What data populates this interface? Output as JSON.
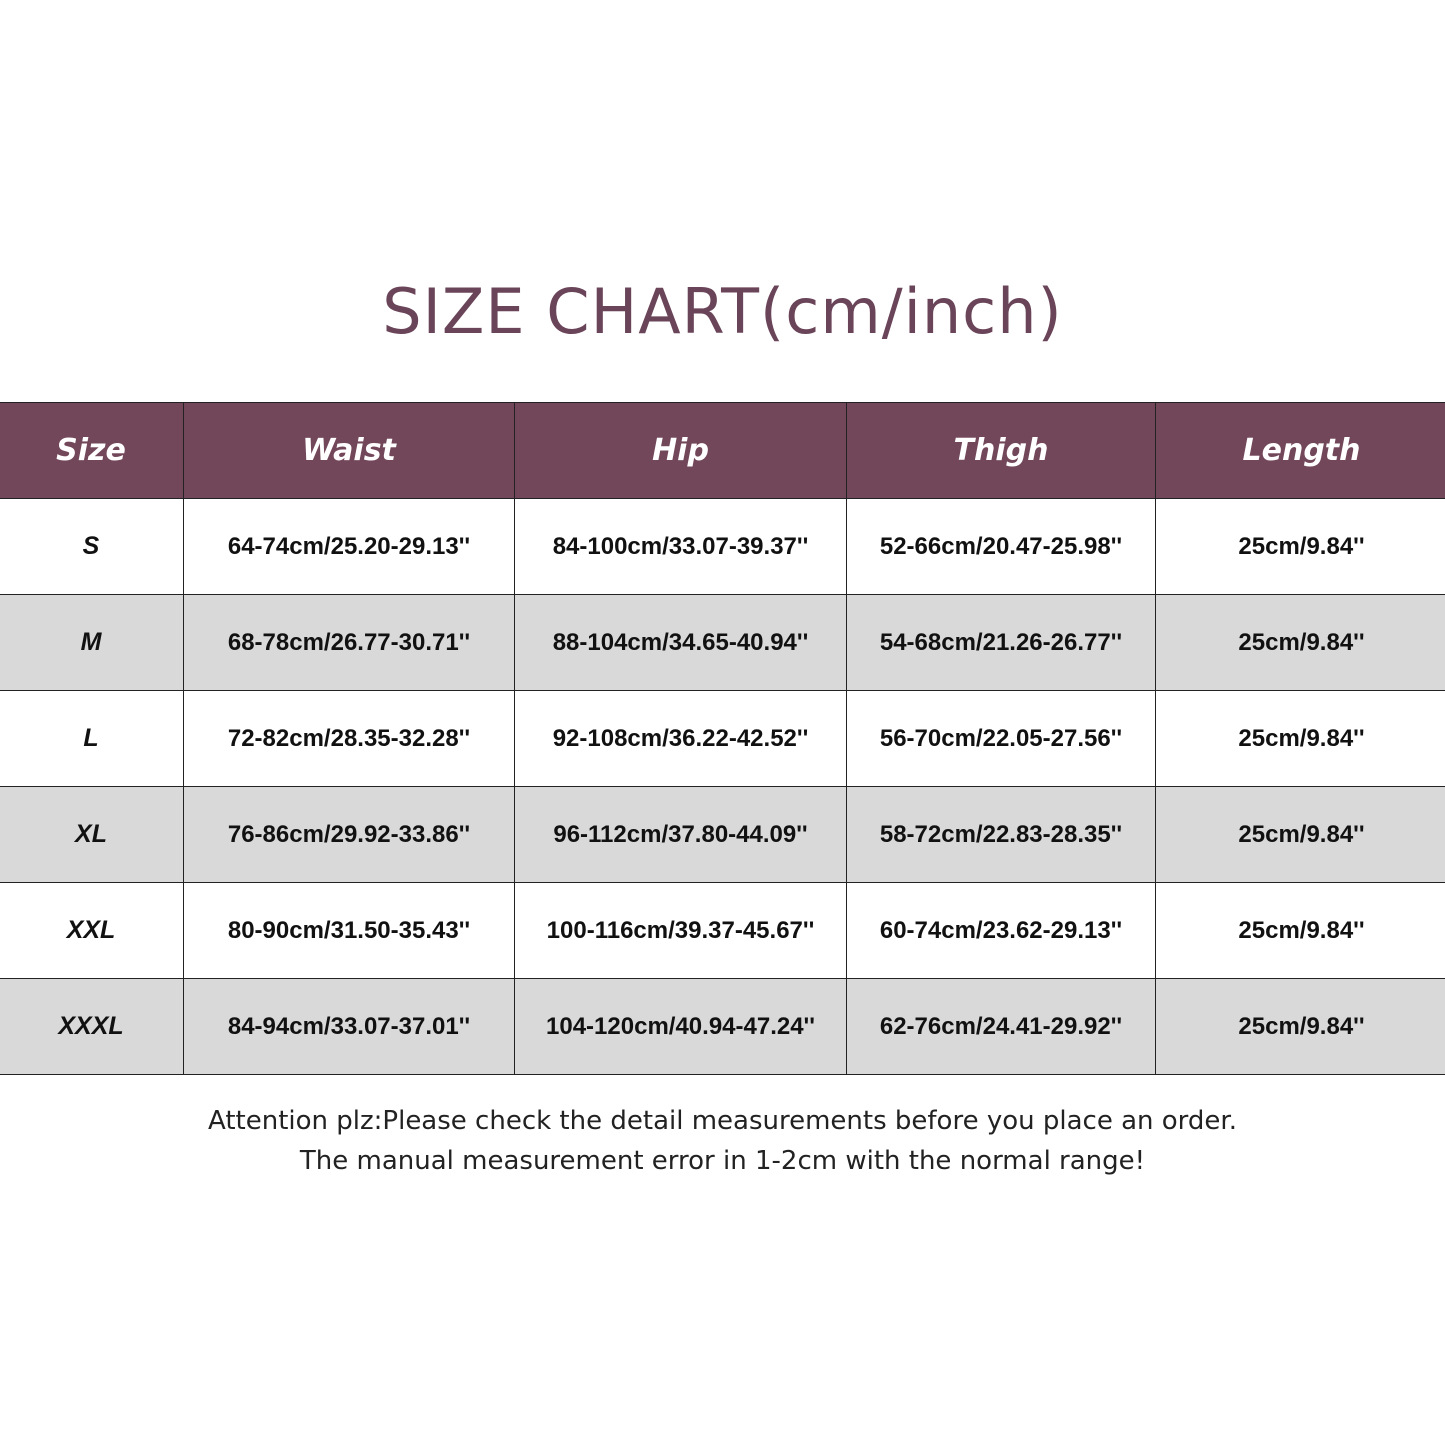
{
  "title": "SIZE CHART(cm/inch)",
  "colors": {
    "header_bg": "#72475a",
    "title": "#6a4458",
    "alt_row": "#d9d9d9"
  },
  "table": {
    "headers": [
      "Size",
      "Waist",
      "Hip",
      "Thigh",
      "Length"
    ],
    "rows": [
      [
        "S",
        "64-74cm/25.20-29.13''",
        "84-100cm/33.07-39.37''",
        "52-66cm/20.47-25.98''",
        "25cm/9.84''"
      ],
      [
        "M",
        "68-78cm/26.77-30.71''",
        "88-104cm/34.65-40.94''",
        "54-68cm/21.26-26.77''",
        "25cm/9.84''"
      ],
      [
        "L",
        "72-82cm/28.35-32.28''",
        "92-108cm/36.22-42.52''",
        "56-70cm/22.05-27.56''",
        "25cm/9.84''"
      ],
      [
        "XL",
        "76-86cm/29.92-33.86''",
        "96-112cm/37.80-44.09''",
        "58-72cm/22.83-28.35''",
        "25cm/9.84''"
      ],
      [
        "XXL",
        "80-90cm/31.50-35.43''",
        "100-116cm/39.37-45.67''",
        "60-74cm/23.62-29.13''",
        "25cm/9.84''"
      ],
      [
        "XXXL",
        "84-94cm/33.07-37.01''",
        "104-120cm/40.94-47.24''",
        "62-76cm/24.41-29.92''",
        "25cm/9.84''"
      ]
    ]
  },
  "note": {
    "line1": "Attention plz:Please check the detail measurements before you place an order.",
    "line2": "The manual measurement error in 1-2cm with the normal range!"
  }
}
